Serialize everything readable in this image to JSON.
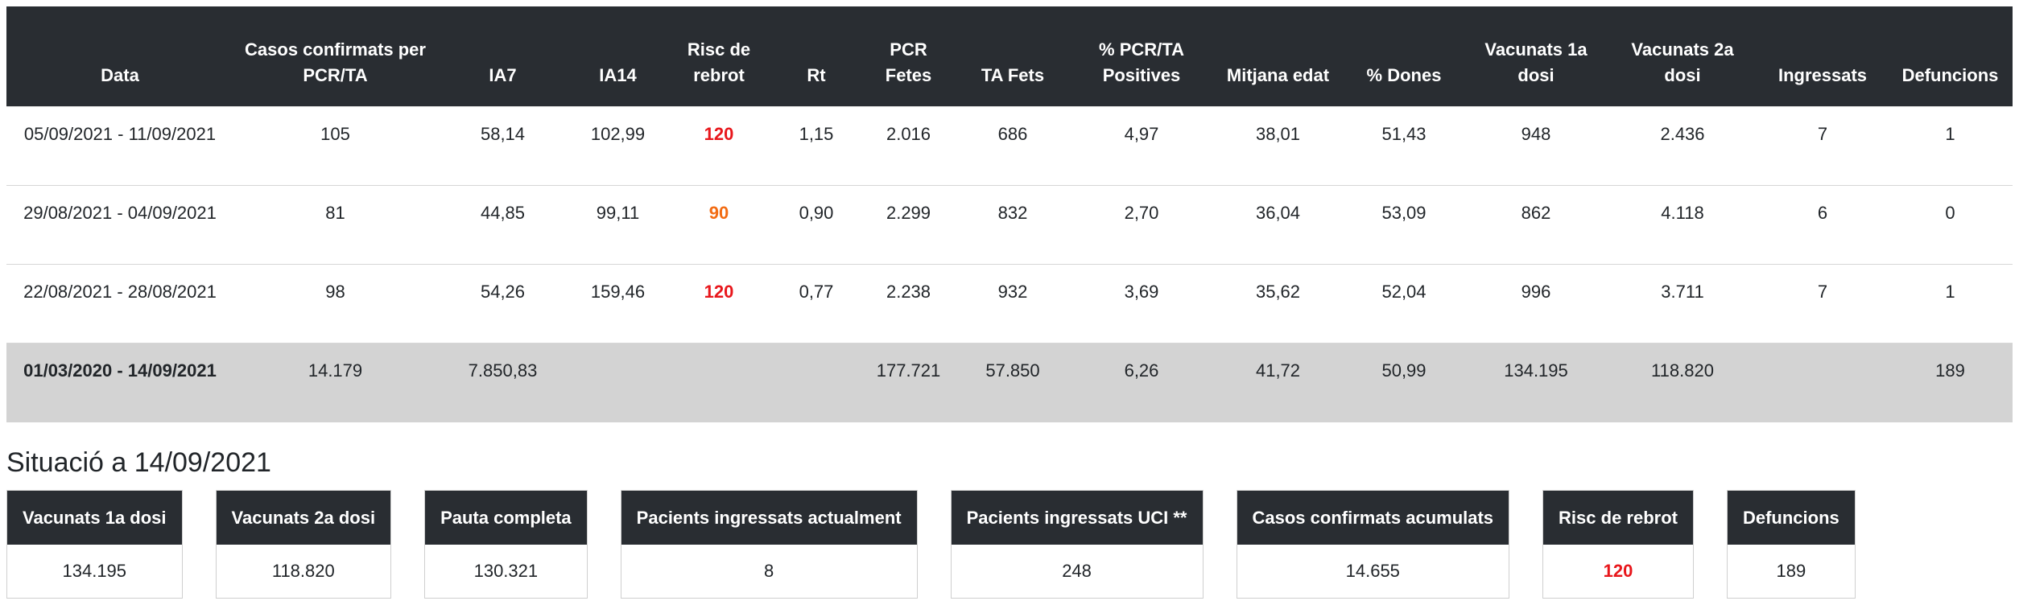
{
  "table": {
    "headers": [
      "Data",
      "Casos confirmats per PCR/TA",
      "IA7",
      "IA14",
      "Risc de rebrot",
      "Rt",
      "PCR Fetes",
      "TA Fets",
      "% PCR/TA Positives",
      "Mitjana edat",
      "% Dones",
      "Vacunats 1a dosi",
      "Vacunats 2a dosi",
      "Ingressats",
      "Defuncions"
    ],
    "risk_column": 4,
    "rows": [
      {
        "cells": [
          "05/09/2021 - 11/09/2021",
          "105",
          "58,14",
          "102,99",
          "120",
          "1,15",
          "2.016",
          "686",
          "4,97",
          "38,01",
          "51,43",
          "948",
          "2.436",
          "7",
          "1"
        ],
        "risk_color": "#e8161b"
      },
      {
        "cells": [
          "29/08/2021 - 04/09/2021",
          "81",
          "44,85",
          "99,11",
          "90",
          "0,90",
          "2.299",
          "832",
          "2,70",
          "36,04",
          "53,09",
          "862",
          "4.118",
          "6",
          "0"
        ],
        "risk_color": "#f26b12"
      },
      {
        "cells": [
          "22/08/2021 - 28/08/2021",
          "98",
          "54,26",
          "159,46",
          "120",
          "0,77",
          "2.238",
          "932",
          "3,69",
          "35,62",
          "52,04",
          "996",
          "3.711",
          "7",
          "1"
        ],
        "risk_color": "#e8161b"
      }
    ],
    "total": [
      "01/03/2020 - 14/09/2021",
      "14.179",
      "7.850,83",
      null,
      null,
      null,
      "177.721",
      "57.850",
      "6,26",
      "41,72",
      "50,99",
      "134.195",
      "118.820",
      null,
      "189"
    ]
  },
  "summary": {
    "title": "Situació a 14/09/2021",
    "cards": [
      {
        "label": "Vacunats 1a dosi",
        "value": "134.195"
      },
      {
        "label": "Vacunats 2a dosi",
        "value": "118.820"
      },
      {
        "label": "Pauta completa",
        "value": "130.321"
      },
      {
        "label": "Pacients ingressats actualment",
        "value": "8"
      },
      {
        "label": "Pacients ingressats UCI **",
        "value": "248"
      },
      {
        "label": "Casos confirmats acumulats",
        "value": "14.655"
      },
      {
        "label": "Risc de rebrot",
        "value": "120",
        "color": "#e8161b"
      },
      {
        "label": "Defuncions",
        "value": "189"
      }
    ]
  }
}
